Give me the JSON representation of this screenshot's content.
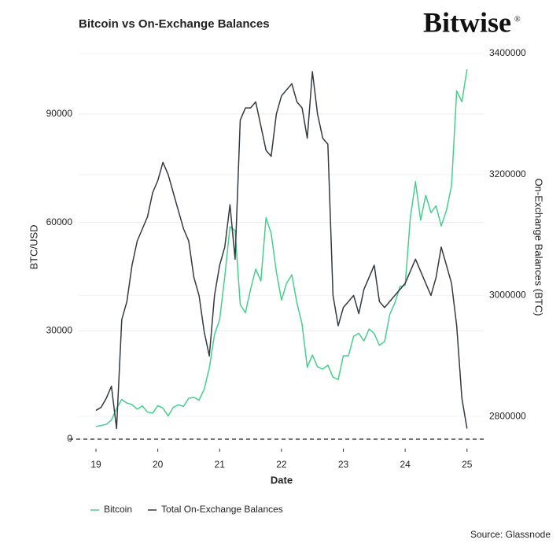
{
  "chart_data": {
    "type": "line",
    "title": "Bitcoin vs On-Exchange Balances",
    "logo": "Bitwise",
    "logo_mark": "®",
    "x_label": "Date",
    "y_label": "BTC/USD",
    "y2_label": "On-Exchange Balances (BTC)",
    "source": "Source: Glassnode",
    "xlim": [
      18.72,
      25.27
    ],
    "xticks": [
      19,
      20,
      21,
      22,
      23,
      24,
      25
    ],
    "ylim": [
      -2614,
      106750
    ],
    "yticks": [
      0,
      30000,
      60000,
      90000
    ],
    "y2lim": [
      2746800,
      3400000
    ],
    "y2ticks": [
      2800000,
      3000000,
      3200000,
      3400000
    ],
    "grid": true,
    "legend": "bottom",
    "x": [
      19,
      19.083,
      19.167,
      19.25,
      19.333,
      19.417,
      19.5,
      19.583,
      19.667,
      19.75,
      19.833,
      19.917,
      20,
      20.083,
      20.167,
      20.25,
      20.333,
      20.417,
      20.5,
      20.583,
      20.667,
      20.75,
      20.833,
      20.917,
      21,
      21.083,
      21.167,
      21.25,
      21.333,
      21.417,
      21.5,
      21.583,
      21.667,
      21.75,
      21.833,
      21.917,
      22,
      22.083,
      22.167,
      22.25,
      22.333,
      22.417,
      22.5,
      22.583,
      22.667,
      22.75,
      22.833,
      22.917,
      23,
      23.083,
      23.167,
      23.25,
      23.333,
      23.417,
      23.5,
      23.583,
      23.667,
      23.75,
      23.833,
      23.917,
      24,
      24.083,
      24.167,
      24.25,
      24.333,
      24.417,
      24.5,
      24.583,
      24.667,
      24.75,
      24.833,
      24.917,
      25
    ],
    "series": [
      {
        "name": "Bitcoin",
        "color": "#45cf8c",
        "axis": "y",
        "values": [
          3500,
          3800,
          4100,
          5300,
          8500,
          11000,
          10000,
          9600,
          8300,
          9200,
          7500,
          7200,
          9300,
          8600,
          6400,
          8800,
          9500,
          9100,
          11300,
          11600,
          10800,
          13800,
          19700,
          29000,
          33100,
          45000,
          58800,
          57700,
          37300,
          35000,
          41500,
          47100,
          43800,
          61300,
          57000,
          46300,
          38500,
          43200,
          45500,
          37700,
          31800,
          19900,
          23300,
          20000,
          19400,
          20500,
          17200,
          16500,
          23100,
          23100,
          28500,
          29300,
          27200,
          30500,
          29200,
          26000,
          27000,
          34500,
          37700,
          42300,
          42600,
          61200,
          71300,
          60600,
          67500,
          62700,
          64600,
          59000,
          63300,
          70200,
          96400,
          93400,
          102400
        ]
      },
      {
        "name": "Total On-Exchange Balances",
        "color": "#333a40",
        "axis": "y2",
        "values": [
          2810000,
          2815000,
          2830000,
          2850000,
          2780000,
          2960000,
          2990000,
          3050000,
          3090000,
          3110000,
          3130000,
          3170000,
          3190000,
          3220000,
          3200000,
          3170000,
          3140000,
          3110000,
          3090000,
          3030000,
          3000000,
          2940000,
          2900000,
          3000000,
          3050000,
          3080000,
          3150000,
          3060000,
          3290000,
          3310000,
          3310000,
          3320000,
          3280000,
          3240000,
          3230000,
          3300000,
          3330000,
          3340000,
          3350000,
          3320000,
          3310000,
          3260000,
          3370000,
          3300000,
          3260000,
          3250000,
          3000000,
          2950000,
          2980000,
          2990000,
          3000000,
          2970000,
          3010000,
          3030000,
          3050000,
          2990000,
          2980000,
          2990000,
          3000000,
          3010000,
          3020000,
          3040000,
          3060000,
          3040000,
          3020000,
          3000000,
          3030000,
          3080000,
          3050000,
          3020000,
          2950000,
          2830000,
          2780000
        ]
      }
    ]
  }
}
